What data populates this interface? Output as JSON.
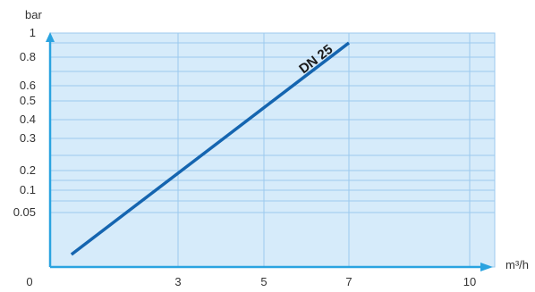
{
  "chart_data": {
    "type": "line",
    "y_unit": "bar",
    "x_unit": "m³/h",
    "y_ticks": [
      {
        "label": "1",
        "value": 1
      },
      {
        "label": "0.8",
        "value": 0.8
      },
      {
        "label": "0.6",
        "value": 0.6
      },
      {
        "label": "0.5",
        "value": 0.5
      },
      {
        "label": "0.4",
        "value": 0.4
      },
      {
        "label": "0.3",
        "value": 0.3
      },
      {
        "label": "0.2",
        "value": 0.2
      },
      {
        "label": "0.1",
        "value": 0.1
      },
      {
        "label": "0.05",
        "value": 0.05
      }
    ],
    "y_minor_values": [
      0.9,
      0.7,
      0.25,
      0.15,
      0.075
    ],
    "x_ticks": [
      {
        "label": "0",
        "value": 0
      },
      {
        "label": "3",
        "value": 3
      },
      {
        "label": "5",
        "value": 5
      },
      {
        "label": "7",
        "value": 7
      },
      {
        "label": "10",
        "value": 10
      }
    ],
    "series": [
      {
        "name": "DN 25",
        "color": "#1565b0",
        "points": [
          {
            "x": 0.5,
            "y": 0.0
          },
          {
            "x": 7.0,
            "y": 0.9
          }
        ]
      }
    ],
    "grid": true,
    "colors": {
      "plot_background": "#d6ebfa",
      "grid": "#9ccaee",
      "axis_arrow": "#2aa3e0",
      "line": "#1565b0"
    }
  }
}
